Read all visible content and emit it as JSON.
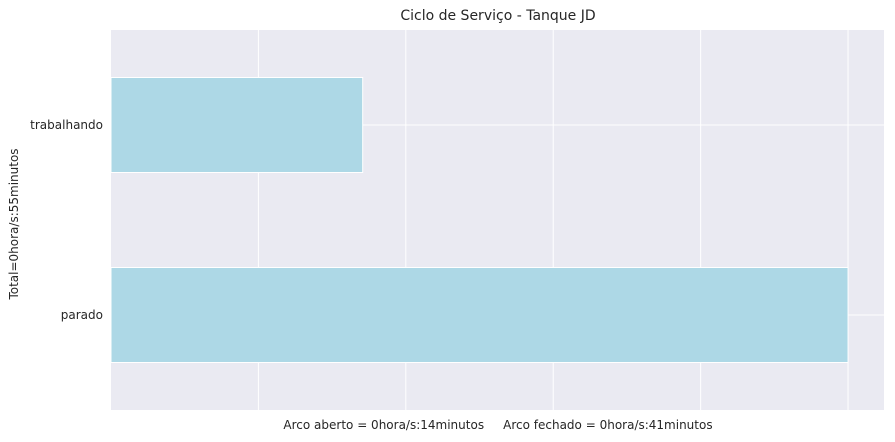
{
  "chart_data": {
    "type": "bar",
    "orientation": "horizontal",
    "title": "Ciclo de Serviço - Tanque JD",
    "xlabel": "Arco aberto = 0hora/s:14minutos     Arco fechado = 0hora/s:41minutos",
    "ylabel": "Total=0hora/s:55minutos",
    "categories": [
      "trabalhando",
      "parado"
    ],
    "values": [
      14,
      41
    ],
    "xlim": [
      0,
      43
    ],
    "x_tick_values": [
      8.2,
      16.4,
      24.6,
      32.8,
      41
    ],
    "x_tick_labels_visible": false,
    "grid": true,
    "legend": "none",
    "bar_color": "#add8e6",
    "background_color": "#eaeaf2",
    "grid_color": "#ffffff"
  }
}
